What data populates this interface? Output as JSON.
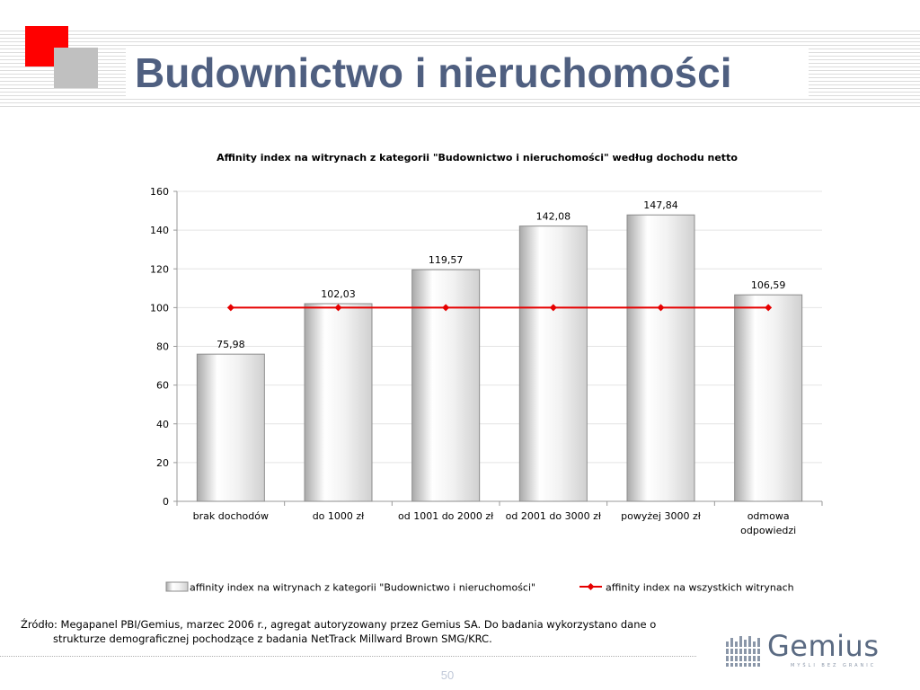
{
  "page": {
    "title": "Budownictwo i nieruchomości",
    "source_text": "Źródło: Megapanel PBI/Gemius, marzec 2006 r., agregat autoryzowany przez Gemius SA. Do badania wykorzystano dane o strukturze demograficznej pochodzące z badania NetTrack Millward Brown SMG/KRC.",
    "page_number": "50",
    "logo_text": "Gemius",
    "logo_tagline": "MYŚLI BEZ GRANIC"
  },
  "colors": {
    "title": "#4f5f80",
    "accent_red": "#ff0000",
    "accent_gray": "#c0c0c0",
    "bars": "#d0d0d0",
    "line": "#e60000"
  },
  "chart_data": {
    "type": "bar",
    "title": "Affinity index na witrynach z kategorii \"Budownictwo i nieruchomości\" według dochodu netto",
    "categories": [
      [
        "brak dochodów"
      ],
      [
        "do 1000 zł"
      ],
      [
        "od 1001 do 2000 zł"
      ],
      [
        "od 2001 do 3000 zł"
      ],
      [
        "powyżej 3000 zł"
      ],
      [
        "odmowa",
        "odpowiedzi"
      ]
    ],
    "series": [
      {
        "name": "affinity index na witrynach z kategorii \"Budownictwo i nieruchomości\"",
        "kind": "bar",
        "values": [
          75.98,
          102.03,
          119.57,
          142.08,
          147.84,
          106.59
        ],
        "labels": [
          "75,98",
          "102,03",
          "119,57",
          "142,08",
          "147,84",
          "106,59"
        ]
      },
      {
        "name": "affinity index na wszystkich witrynach",
        "kind": "line",
        "values": [
          100,
          100,
          100,
          100,
          100,
          100
        ]
      }
    ],
    "ylim": [
      0,
      160
    ],
    "yticks": [
      0,
      20,
      40,
      60,
      80,
      100,
      120,
      140,
      160
    ],
    "grid": true,
    "legend": "bottom"
  }
}
